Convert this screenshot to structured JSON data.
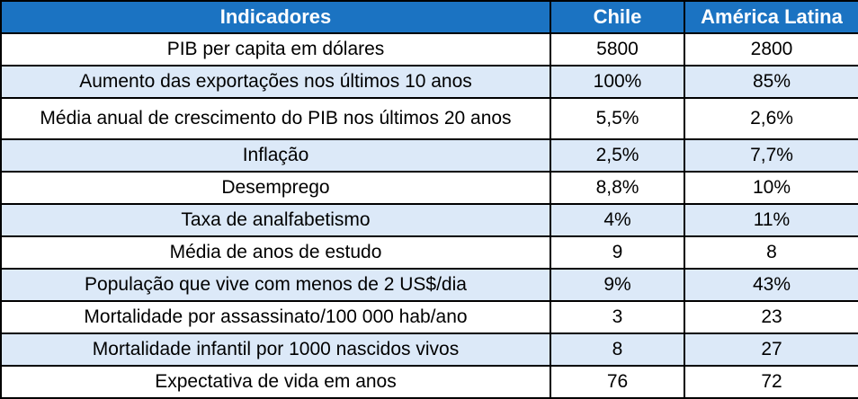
{
  "table": {
    "headers": [
      "Indicadores",
      "Chile",
      "América Latina"
    ],
    "rows": [
      {
        "indicator": "PIB per capita em dólares",
        "chile": "5800",
        "america_latina": "2800"
      },
      {
        "indicator": "Aumento das exportações nos últimos 10 anos",
        "chile": "100%",
        "america_latina": "85%"
      },
      {
        "indicator": "Média anual de crescimento do PIB nos últimos 20 anos",
        "chile": "5,5%",
        "america_latina": "2,6%"
      },
      {
        "indicator": "Inflação",
        "chile": "2,5%",
        "america_latina": "7,7%"
      },
      {
        "indicator": "Desemprego",
        "chile": "8,8%",
        "america_latina": "10%"
      },
      {
        "indicator": "Taxa de analfabetismo",
        "chile": "4%",
        "america_latina": "11%"
      },
      {
        "indicator": "Média de anos de estudo",
        "chile": "9",
        "america_latina": "8"
      },
      {
        "indicator": "População que vive com menos de 2 US$/dia",
        "chile": "9%",
        "america_latina": "43%"
      },
      {
        "indicator": "Mortalidade por assassinato/100 000 hab/ano",
        "chile": "3",
        "america_latina": "23"
      },
      {
        "indicator": "Mortalidade infantil por 1000 nascidos vivos",
        "chile": "8",
        "america_latina": "27"
      },
      {
        "indicator": "Expectativa de vida em anos",
        "chile": "76",
        "america_latina": "72"
      }
    ]
  },
  "colors": {
    "header_bg": "#1b73c2",
    "header_text": "#ffffff",
    "alt_row_bg": "#dce9f8",
    "border": "#000000"
  }
}
